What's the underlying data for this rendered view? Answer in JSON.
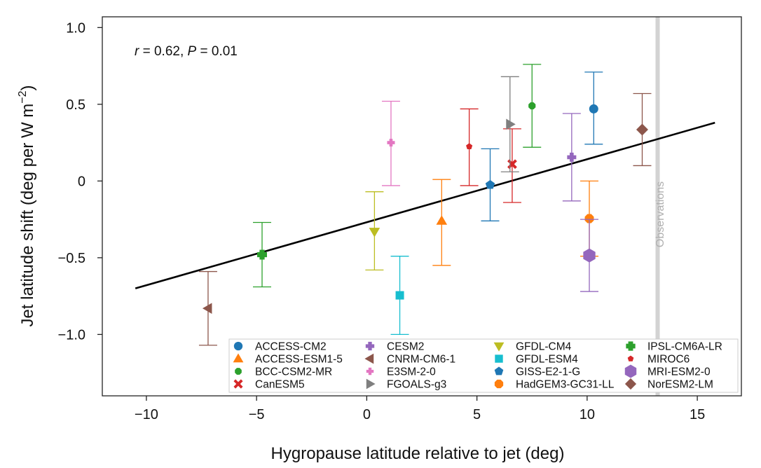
{
  "chart_data": {
    "type": "scatter",
    "xlabel": "Hygropause latitude relative to jet (deg)",
    "ylabel_prefix": "Jet latitude shift (deg per W m",
    "ylabel_sup": "−2",
    "ylabel_suffix": ")",
    "xlim": [
      -12,
      17
    ],
    "ylim": [
      -1.4,
      1.07
    ],
    "x_ticks": [
      -10,
      -5,
      0,
      5,
      10,
      15
    ],
    "x_tick_labels": [
      "−10",
      "−5",
      "0",
      "5",
      "10",
      "15"
    ],
    "y_ticks": [
      1.0,
      0.5,
      0,
      -0.5,
      -1.0
    ],
    "y_tick_labels": [
      "1.0",
      "0.5",
      "0",
      "−0.5",
      "−1.0"
    ],
    "annotation": {
      "r_symbol": "r",
      "r_text": " = 0.62, ",
      "p_symbol": "P",
      "p_text": " = 0.01"
    },
    "observations": {
      "x": 13.2,
      "label": "Observations",
      "color": "#d3d3d3"
    },
    "regression": {
      "x": [
        -10.5,
        15.8
      ],
      "y": [
        -0.7,
        0.38
      ],
      "color": "#000000"
    },
    "legend_location": "lower-right",
    "legend_columns": 4,
    "series": [
      {
        "name": "ACCESS-CM2",
        "x": 10.3,
        "y": 0.47,
        "yerr_low": 0.24,
        "yerr_high": 0.71,
        "color": "#1f77b4",
        "marker": "circle"
      },
      {
        "name": "ACCESS-ESM1-5",
        "x": 3.4,
        "y": -0.26,
        "yerr_low": -0.55,
        "yerr_high": 0.01,
        "color": "#ff7f0e",
        "marker": "triangle-up"
      },
      {
        "name": "BCC-CSM2-MR",
        "x": 7.5,
        "y": 0.49,
        "yerr_low": 0.22,
        "yerr_high": 0.76,
        "color": "#2ca02c",
        "marker": "small-octagon"
      },
      {
        "name": "CanESM5",
        "x": 6.6,
        "y": 0.11,
        "yerr_low": -0.14,
        "yerr_high": 0.34,
        "color": "#d62728",
        "marker": "x"
      },
      {
        "name": "CESM2",
        "x": 9.3,
        "y": 0.155,
        "yerr_low": -0.13,
        "yerr_high": 0.44,
        "color": "#9467bd",
        "marker": "plus"
      },
      {
        "name": "CNRM-CM6-1",
        "x": -7.2,
        "y": -0.83,
        "yerr_low": -1.07,
        "yerr_high": -0.59,
        "color": "#8c564b",
        "marker": "triangle-left"
      },
      {
        "name": "E3SM-2-0",
        "x": 1.1,
        "y": 0.25,
        "yerr_low": -0.03,
        "yerr_high": 0.52,
        "color": "#e377c2",
        "marker": "small-plus"
      },
      {
        "name": "FGOALS-g3",
        "x": 6.5,
        "y": 0.37,
        "yerr_low": 0.06,
        "yerr_high": 0.68,
        "color": "#7f7f7f",
        "marker": "triangle-right"
      },
      {
        "name": "GFDL-CM4",
        "x": 0.35,
        "y": -0.33,
        "yerr_low": -0.58,
        "yerr_high": -0.07,
        "color": "#bcbd22",
        "marker": "triangle-down"
      },
      {
        "name": "GFDL-ESM4",
        "x": 1.5,
        "y": -0.745,
        "yerr_low": -1.0,
        "yerr_high": -0.49,
        "color": "#17becf",
        "marker": "square"
      },
      {
        "name": "GISS-E2-1-G",
        "x": 5.6,
        "y": -0.025,
        "yerr_low": -0.26,
        "yerr_high": 0.21,
        "color": "#1f77b4",
        "marker": "pentagon"
      },
      {
        "name": "HadGEM3-GC31-LL",
        "x": 10.1,
        "y": -0.245,
        "yerr_low": -0.49,
        "yerr_high": 0.0,
        "color": "#ff7f0e",
        "marker": "octagon"
      },
      {
        "name": "IPSL-CM6A-LR",
        "x": -4.75,
        "y": -0.48,
        "yerr_low": -0.69,
        "yerr_high": -0.27,
        "color": "#2ca02c",
        "marker": "plus-filled"
      },
      {
        "name": "MIROC6",
        "x": 4.65,
        "y": 0.225,
        "yerr_low": -0.03,
        "yerr_high": 0.47,
        "color": "#d62728",
        "marker": "small-pentagon"
      },
      {
        "name": "MRI-ESM2-0",
        "x": 10.1,
        "y": -0.485,
        "yerr_low": -0.72,
        "yerr_high": -0.25,
        "color": "#9467bd",
        "marker": "hexagon"
      },
      {
        "name": "NorESM2-LM",
        "x": 12.5,
        "y": 0.335,
        "yerr_low": 0.1,
        "yerr_high": 0.57,
        "color": "#8c564b",
        "marker": "diamond"
      }
    ]
  }
}
